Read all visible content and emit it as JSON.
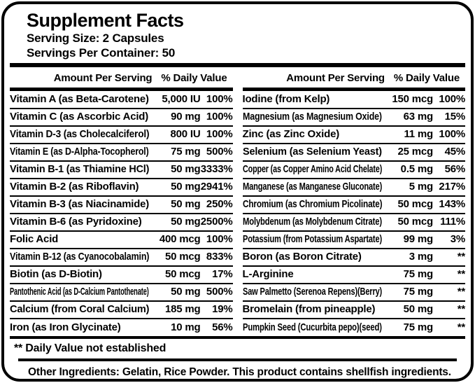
{
  "header": {
    "title": "Supplement Facts",
    "serving_size": "Serving Size: 2 Capsules",
    "servings_per_container": "Servings Per Container: 50"
  },
  "col_header": {
    "amount": "Amount Per Serving",
    "dv": "% Daily Value"
  },
  "table": {
    "left": [
      {
        "name": "Vitamin A (as Beta-Carotene)",
        "amount": "5,000 IU",
        "dv": "100%"
      },
      {
        "name": "Vitamin C (as Ascorbic Acid)",
        "amount": "90 mg",
        "dv": "100%"
      },
      {
        "name": "Vitamin D-3 (as Cholecalciferol)",
        "amount": "800 IU",
        "dv": "100%"
      },
      {
        "name": "Vitamin E (as D-Alpha-Tocopherol)",
        "amount": "75 mg",
        "dv": "500%"
      },
      {
        "name": "Vitamin B-1 (as Thiamine HCl)",
        "amount": "50 mg",
        "dv": "3333%"
      },
      {
        "name": "Vitamin B-2 (as Riboflavin)",
        "amount": "50 mg",
        "dv": "2941%"
      },
      {
        "name": "Vitamin B-3 (as Niacinamide)",
        "amount": "50 mg",
        "dv": "250%"
      },
      {
        "name": "Vitamin B-6 (as Pyridoxine)",
        "amount": "50 mg",
        "dv": "2500%"
      },
      {
        "name": "Folic Acid",
        "amount": "400 mcg",
        "dv": "100%"
      },
      {
        "name": "Vitamin B-12 (as Cyanocobalamin)",
        "amount": "50 mcg",
        "dv": "833%"
      },
      {
        "name": "Biotin (as D-Biotin)",
        "amount": "50 mcg",
        "dv": "17%"
      },
      {
        "name": "Pantothenic Acid (as D-Calcium Pantothenate)",
        "amount": "50 mg",
        "dv": "500%"
      },
      {
        "name": "Calcium (from Coral Calcium)",
        "amount": "185 mg",
        "dv": "19%"
      },
      {
        "name": "Iron (as Iron Glycinate)",
        "amount": "10 mg",
        "dv": "56%"
      }
    ],
    "right": [
      {
        "name": "Iodine (from Kelp)",
        "amount": "150 mcg",
        "dv": "100%"
      },
      {
        "name": "Magnesium (as Magnesium Oxide)",
        "amount": "63 mg",
        "dv": "15%"
      },
      {
        "name": "Zinc (as Zinc Oxide)",
        "amount": "11 mg",
        "dv": "100%"
      },
      {
        "name": "Selenium (as Selenium Yeast)",
        "amount": "25 mcg",
        "dv": "45%"
      },
      {
        "name": "Copper (as Copper Amino Acid Chelate)",
        "amount": "0.5 mg",
        "dv": "56%"
      },
      {
        "name": "Manganese (as Manganese Gluconate)",
        "amount": "5 mg",
        "dv": "217%"
      },
      {
        "name": "Chromium (as Chromium Picolinate)",
        "amount": "50 mcg",
        "dv": "143%"
      },
      {
        "name": "Molybdenum (as Molybdenum Citrate)",
        "amount": "50 mcg",
        "dv": "111%"
      },
      {
        "name": "Potassium (from Potassium Aspartate)",
        "amount": "99 mg",
        "dv": "3%"
      },
      {
        "name": "Boron (as Boron Citrate)",
        "amount": "3 mg",
        "dv": "**"
      },
      {
        "name": "L-Arginine",
        "amount": "75 mg",
        "dv": "**"
      },
      {
        "name": "Saw Palmetto (Serenoa Repens)(Berry)",
        "amount": "75 mg",
        "dv": "**"
      },
      {
        "name": "Bromelain (from pineapple)",
        "amount": "50 mg",
        "dv": "**"
      },
      {
        "name": "Pumpkin Seed (Cucurbita pepo)(seed)",
        "amount": "75 mg",
        "dv": "**"
      }
    ]
  },
  "footnote": {
    "text": "** Daily Value not established"
  },
  "other_ingredients": {
    "text": "Other Ingredients: Gelatin, Rice Powder. This product contains shellfish ingredients."
  },
  "colors": {
    "ink": "#000000",
    "background": "#ffffff"
  }
}
